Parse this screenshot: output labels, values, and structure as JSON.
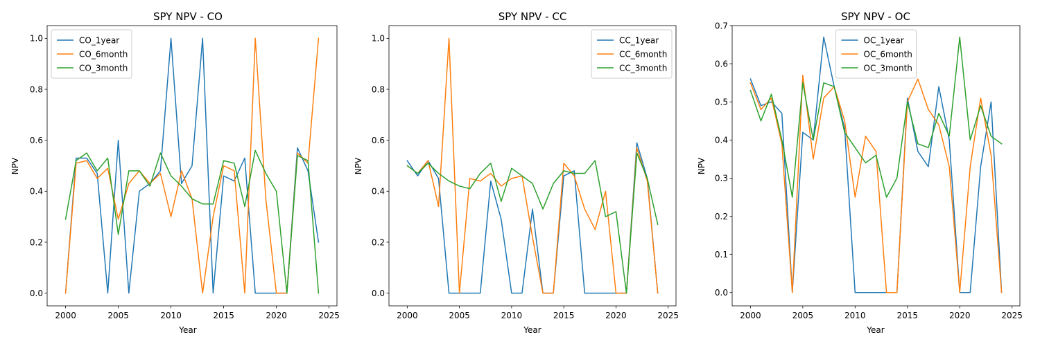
{
  "chart_data": [
    {
      "type": "line",
      "title": "SPY NPV - CO",
      "xlabel": "Year",
      "ylabel": "NPV",
      "xlim": [
        1998.25,
        2025.75
      ],
      "ylim": [
        -0.05,
        1.05
      ],
      "xticks": [
        2000,
        2005,
        2010,
        2015,
        2020,
        2025
      ],
      "yticks": [
        0.0,
        0.2,
        0.4,
        0.6,
        0.8,
        1.0
      ],
      "ytick_labels": [
        "0.0",
        "0.2",
        "0.4",
        "0.6",
        "0.8",
        "1.0"
      ],
      "legend_position": "upper left",
      "grid": false,
      "x": [
        2000,
        2001,
        2002,
        2003,
        2004,
        2005,
        2006,
        2007,
        2008,
        2009,
        2010,
        2011,
        2012,
        2013,
        2014,
        2015,
        2016,
        2017,
        2018,
        2019,
        2020,
        2021,
        2022,
        2023,
        2024
      ],
      "series": [
        {
          "name": "CO_1year",
          "color": "#1f77b4",
          "values": [
            0.0,
            0.53,
            0.53,
            0.47,
            0.0,
            0.6,
            0.0,
            0.4,
            0.43,
            0.48,
            1.0,
            0.43,
            0.5,
            1.0,
            0.0,
            0.46,
            0.44,
            0.53,
            0.0,
            0.0,
            0.0,
            0.0,
            0.57,
            0.48,
            0.2
          ]
        },
        {
          "name": "CO_6month",
          "color": "#ff7f0e",
          "values": [
            0.0,
            0.51,
            0.52,
            0.45,
            0.49,
            0.29,
            0.43,
            0.48,
            0.43,
            0.47,
            0.3,
            0.48,
            0.37,
            0.0,
            0.3,
            0.5,
            0.48,
            0.0,
            1.0,
            0.37,
            0.0,
            0.0,
            0.55,
            0.51,
            1.0
          ]
        },
        {
          "name": "CO_3month",
          "color": "#2ca02c",
          "values": [
            0.29,
            0.52,
            0.55,
            0.48,
            0.53,
            0.23,
            0.48,
            0.48,
            0.42,
            0.55,
            0.46,
            0.42,
            0.37,
            0.35,
            0.35,
            0.52,
            0.51,
            0.34,
            0.56,
            0.47,
            0.4,
            0.0,
            0.54,
            0.52,
            0.0
          ]
        }
      ]
    },
    {
      "type": "line",
      "title": "SPY NPV - CC",
      "xlabel": "Year",
      "ylabel": "NPV",
      "xlim": [
        1998.25,
        2025.75
      ],
      "ylim": [
        -0.05,
        1.05
      ],
      "xticks": [
        2000,
        2005,
        2010,
        2015,
        2020,
        2025
      ],
      "yticks": [
        0.0,
        0.2,
        0.4,
        0.6,
        0.8,
        1.0
      ],
      "ytick_labels": [
        "0.0",
        "0.2",
        "0.4",
        "0.6",
        "0.8",
        "1.0"
      ],
      "legend_position": "upper right",
      "grid": false,
      "x": [
        2000,
        2001,
        2002,
        2003,
        2004,
        2005,
        2006,
        2007,
        2008,
        2009,
        2010,
        2011,
        2012,
        2013,
        2014,
        2015,
        2016,
        2017,
        2018,
        2019,
        2020,
        2021,
        2022,
        2023,
        2024
      ],
      "series": [
        {
          "name": "CC_1year",
          "color": "#1f77b4",
          "values": [
            0.52,
            0.46,
            0.52,
            0.45,
            0.0,
            0.0,
            0.0,
            0.0,
            0.44,
            0.29,
            0.0,
            0.0,
            0.33,
            0.0,
            0.0,
            0.46,
            0.48,
            0.0,
            0.0,
            0.0,
            0.0,
            0.0,
            0.59,
            0.45,
            0.0
          ]
        },
        {
          "name": "CC_6month",
          "color": "#ff7f0e",
          "values": [
            0.5,
            0.47,
            0.52,
            0.34,
            1.0,
            0.0,
            0.45,
            0.44,
            0.47,
            0.42,
            0.45,
            0.46,
            0.22,
            0.0,
            0.0,
            0.51,
            0.46,
            0.33,
            0.25,
            0.4,
            0.0,
            0.0,
            0.57,
            0.44,
            0.0
          ]
        },
        {
          "name": "CC_3month",
          "color": "#2ca02c",
          "values": [
            0.5,
            0.47,
            0.51,
            0.47,
            0.44,
            0.42,
            0.41,
            0.47,
            0.51,
            0.36,
            0.49,
            0.46,
            0.43,
            0.33,
            0.43,
            0.48,
            0.47,
            0.47,
            0.52,
            0.3,
            0.32,
            0.0,
            0.55,
            0.45,
            0.27
          ]
        }
      ]
    },
    {
      "type": "line",
      "title": "SPY NPV - OC",
      "xlabel": "Year",
      "ylabel": "NPV",
      "xlim": [
        1998.25,
        2025.75
      ],
      "ylim": [
        -0.035,
        0.7
      ],
      "xticks": [
        2000,
        2005,
        2010,
        2015,
        2020,
        2025
      ],
      "yticks": [
        0.0,
        0.1,
        0.2,
        0.3,
        0.4,
        0.5,
        0.6,
        0.7
      ],
      "ytick_labels": [
        "0.0",
        "0.1",
        "0.2",
        "0.3",
        "0.4",
        "0.5",
        "0.6",
        "0.7"
      ],
      "legend_position": "upper center",
      "grid": false,
      "x": [
        2000,
        2001,
        2002,
        2003,
        2004,
        2005,
        2006,
        2007,
        2008,
        2009,
        2010,
        2011,
        2012,
        2013,
        2014,
        2015,
        2016,
        2017,
        2018,
        2019,
        2020,
        2021,
        2022,
        2023,
        2024
      ],
      "series": [
        {
          "name": "OC_1year",
          "color": "#1f77b4",
          "values": [
            0.56,
            0.49,
            0.5,
            0.47,
            0.0,
            0.42,
            0.4,
            0.67,
            0.54,
            0.43,
            0.0,
            0.0,
            0.0,
            0.0,
            0.0,
            0.51,
            0.37,
            0.33,
            0.54,
            0.4,
            0.0,
            0.0,
            0.33,
            0.5,
            0.0
          ]
        },
        {
          "name": "OC_6month",
          "color": "#ff7f0e",
          "values": [
            0.55,
            0.48,
            0.51,
            0.39,
            0.0,
            0.57,
            0.35,
            0.51,
            0.54,
            0.45,
            0.25,
            0.41,
            0.37,
            0.0,
            0.0,
            0.5,
            0.56,
            0.48,
            0.44,
            0.33,
            0.0,
            0.33,
            0.51,
            0.36,
            0.0
          ]
        },
        {
          "name": "OC_3month",
          "color": "#2ca02c",
          "values": [
            0.53,
            0.45,
            0.52,
            0.4,
            0.25,
            0.55,
            0.4,
            0.55,
            0.54,
            0.42,
            0.38,
            0.34,
            0.36,
            0.25,
            0.3,
            0.5,
            0.39,
            0.38,
            0.47,
            0.41,
            0.67,
            0.4,
            0.49,
            0.41,
            0.39
          ]
        }
      ]
    }
  ]
}
